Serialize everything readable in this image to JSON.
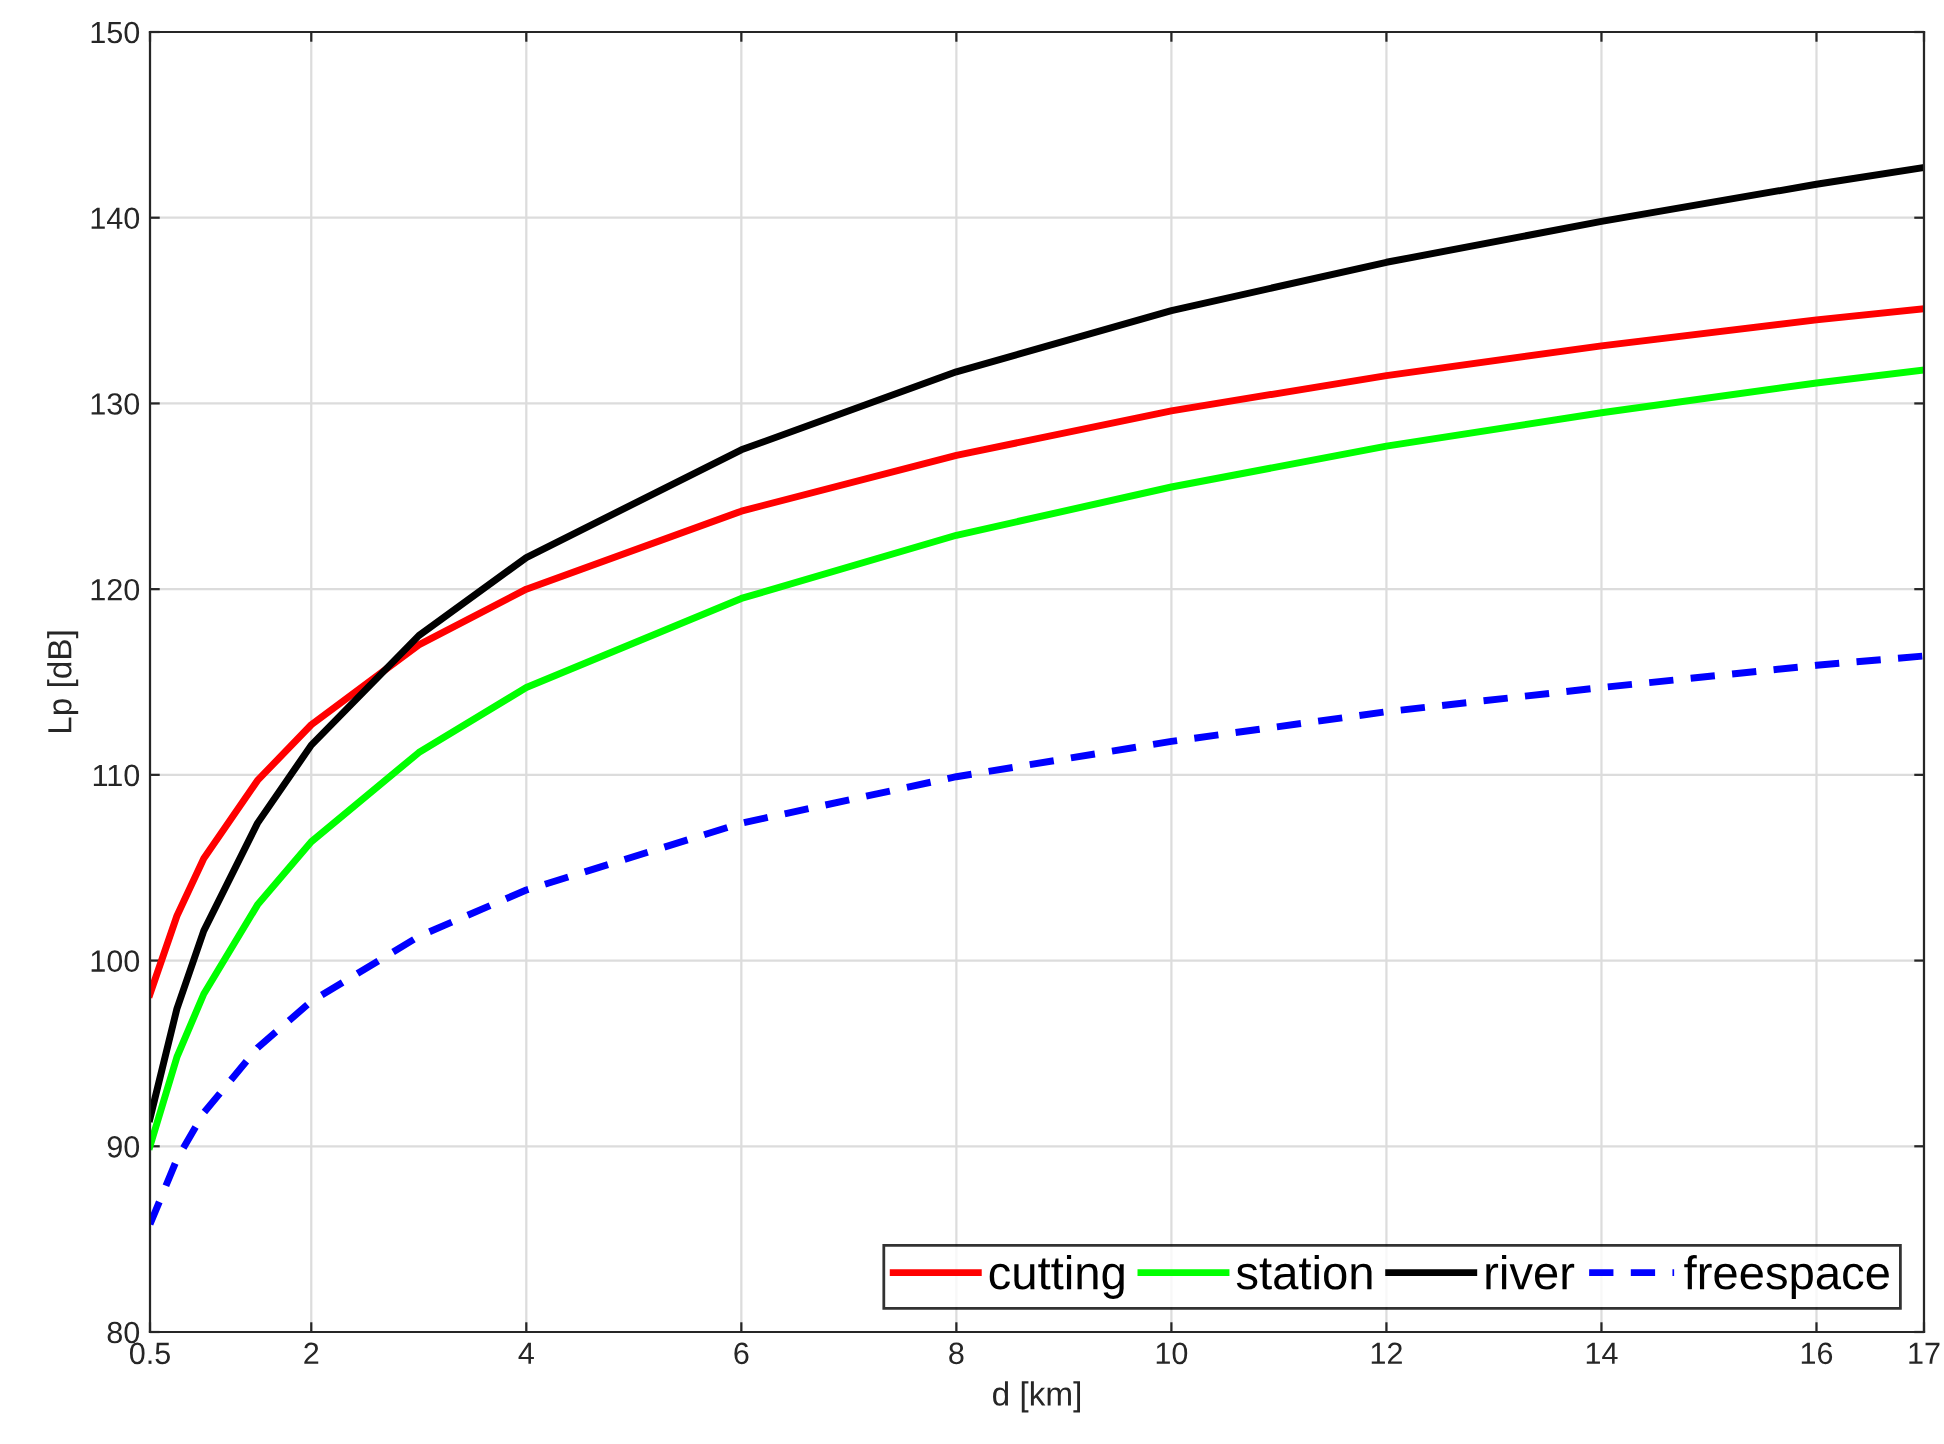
{
  "chart_data": {
    "type": "line",
    "xlabel": "d [km]",
    "ylabel": "Lp [dB]",
    "x": [
      0.5,
      0.75,
      1,
      1.5,
      2,
      3,
      4,
      6,
      8,
      10,
      12,
      14,
      16,
      17
    ],
    "series": [
      {
        "name": "cutting",
        "color": "#ff0000",
        "values": [
          98.2,
          102.4,
          105.5,
          109.7,
          112.7,
          117.0,
          120.0,
          124.2,
          127.2,
          129.6,
          131.5,
          133.1,
          134.5,
          135.1
        ]
      },
      {
        "name": "station",
        "color": "#00ff00",
        "values": [
          90.0,
          94.8,
          98.2,
          103.0,
          106.4,
          111.2,
          114.7,
          119.5,
          122.9,
          125.5,
          127.7,
          129.5,
          131.1,
          131.8
        ]
      },
      {
        "name": "river",
        "color": "#000000",
        "values": [
          91.5,
          97.4,
          101.6,
          107.4,
          111.6,
          117.5,
          121.7,
          127.5,
          131.7,
          135.0,
          137.6,
          139.8,
          141.8,
          142.7
        ]
      },
      {
        "name": "freespace",
        "color": "#0000ff",
        "line_style": "dashed",
        "values": [
          85.8,
          89.3,
          91.8,
          95.3,
          97.8,
          101.3,
          103.8,
          107.4,
          109.9,
          111.8,
          113.4,
          114.7,
          115.9,
          116.4
        ]
      }
    ],
    "xlim": [
      0.5,
      17
    ],
    "xticks": [
      0.5,
      2,
      4,
      6,
      8,
      10,
      12,
      14,
      16,
      17
    ],
    "ylim": [
      80,
      150
    ],
    "yticks": [
      80,
      90,
      100,
      110,
      120,
      130,
      140,
      150
    ],
    "grid": true,
    "legend": "bottom right"
  }
}
